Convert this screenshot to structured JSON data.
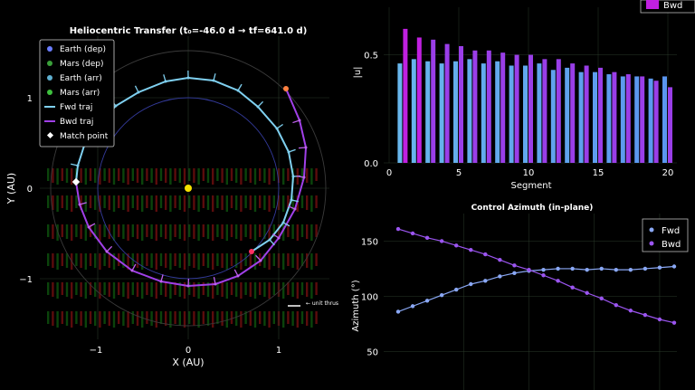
{
  "colors": {
    "fwd": "#7fd0f0",
    "bwd": "#a040e8",
    "fwd_dots": "#8aa8f5",
    "bwd_dots": "#9b55f0",
    "earth": "#6a7dff",
    "mars": "#b03030",
    "grid": "#2a3a2a"
  },
  "chart_data": [
    {
      "type": "line",
      "title": "Heliocentric Transfer  (t₀=-46.0 d → tf=641.0 d)",
      "xlabel": "X  (AU)",
      "ylabel": "Y  (AU)",
      "xlim": [
        -1.55,
        1.55
      ],
      "ylim": [
        -1.55,
        1.55
      ],
      "x_ticks": [
        -1,
        0,
        1
      ],
      "y_ticks": [
        -1,
        0,
        1
      ],
      "legend": [
        {
          "label": "Earth (dep)",
          "marker": "dot",
          "color": "#6a7dff"
        },
        {
          "label": "Mars (dep)",
          "marker": "dot",
          "color": "#3aa03a"
        },
        {
          "label": "Earth (arr)",
          "marker": "dot",
          "color": "#5fb0d0"
        },
        {
          "label": "Mars (arr)",
          "marker": "dot",
          "color": "#3ec03e"
        },
        {
          "label": "Fwd traj",
          "marker": "line",
          "color": "#7fd0f0"
        },
        {
          "label": "Bwd traj",
          "marker": "line",
          "color": "#a040e8"
        },
        {
          "label": "Match point",
          "marker": "diamond",
          "color": "#ffffff"
        }
      ],
      "annotation": "← unit thrus",
      "earth_orbit_r": 1.0,
      "mars_orbit_r": 1.52,
      "sun": [
        0,
        0
      ],
      "fwd_traj": [
        [
          -1.24,
          0.07
        ],
        [
          -1.22,
          0.25
        ],
        [
          -1.15,
          0.47
        ],
        [
          -1.0,
          0.7
        ],
        [
          -0.8,
          0.91
        ],
        [
          -0.55,
          1.06
        ],
        [
          -0.25,
          1.18
        ],
        [
          0.0,
          1.22
        ],
        [
          0.28,
          1.19
        ],
        [
          0.55,
          1.08
        ],
        [
          0.77,
          0.9
        ],
        [
          0.98,
          0.66
        ],
        [
          1.11,
          0.4
        ],
        [
          1.16,
          0.13
        ],
        [
          1.14,
          -0.13
        ],
        [
          1.05,
          -0.38
        ],
        [
          0.9,
          -0.57
        ],
        [
          0.7,
          -0.7
        ]
      ],
      "bwd_traj": [
        [
          -1.24,
          0.07
        ],
        [
          -1.2,
          -0.18
        ],
        [
          -1.1,
          -0.43
        ],
        [
          -0.9,
          -0.7
        ],
        [
          -0.62,
          -0.91
        ],
        [
          -0.3,
          -1.03
        ],
        [
          0.0,
          -1.08
        ],
        [
          0.3,
          -1.06
        ],
        [
          0.55,
          -0.97
        ],
        [
          0.8,
          -0.8
        ],
        [
          1.0,
          -0.55
        ],
        [
          1.18,
          -0.23
        ],
        [
          1.28,
          0.12
        ],
        [
          1.3,
          0.45
        ],
        [
          1.23,
          0.75
        ],
        [
          1.08,
          1.1
        ]
      ],
      "match_point": [
        -1.24,
        0.07
      ]
    },
    {
      "type": "bar",
      "title": "",
      "xlabel": "Segment",
      "ylabel": "|u|",
      "xlim": [
        -0.5,
        21
      ],
      "ylim": [
        0,
        0.72
      ],
      "x_ticks": [
        0,
        5,
        10,
        15,
        20
      ],
      "y_ticks": [
        0.0,
        0.5
      ],
      "legend": [
        {
          "label": "Bwd",
          "color": "#c020e0"
        }
      ],
      "categories": [
        1,
        2,
        3,
        4,
        5,
        6,
        7,
        8,
        9,
        10,
        11,
        12,
        13,
        14,
        15,
        16,
        17,
        18,
        19,
        20
      ],
      "series": [
        {
          "name": "Fwd",
          "values": [
            0.46,
            0.48,
            0.47,
            0.46,
            0.47,
            0.48,
            0.46,
            0.47,
            0.45,
            0.45,
            0.46,
            0.43,
            0.44,
            0.42,
            0.42,
            0.41,
            0.4,
            0.4,
            0.39,
            0.4
          ]
        },
        {
          "name": "Bwd",
          "values": [
            0.62,
            0.58,
            0.57,
            0.55,
            0.54,
            0.52,
            0.52,
            0.51,
            0.5,
            0.5,
            0.48,
            0.48,
            0.46,
            0.45,
            0.44,
            0.42,
            0.41,
            0.4,
            0.38,
            0.35
          ]
        }
      ]
    },
    {
      "type": "line",
      "title": "Control Azimuth (in-plane)",
      "xlabel": "",
      "ylabel": "Azimuth (°)",
      "xlim": [
        0,
        20.5
      ],
      "ylim": [
        15,
        175
      ],
      "y_ticks": [
        50,
        100,
        150
      ],
      "legend": [
        {
          "label": "Fwd",
          "color": "#8aa8f5"
        },
        {
          "label": "Bwd",
          "color": "#9b55f0"
        }
      ],
      "series": [
        {
          "name": "Fwd",
          "x": [
            1,
            2,
            3,
            4,
            5,
            6,
            7,
            8,
            9,
            10,
            11,
            12,
            13,
            14,
            15,
            16,
            17,
            18,
            19,
            20
          ],
          "values": [
            86,
            91,
            96,
            101,
            106,
            111,
            114,
            118,
            121,
            123,
            124,
            125,
            125,
            124,
            125,
            124,
            124,
            125,
            126,
            127
          ]
        },
        {
          "name": "Bwd",
          "x": [
            1,
            2,
            3,
            4,
            5,
            6,
            7,
            8,
            9,
            10,
            11,
            12,
            13,
            14,
            15,
            16,
            17,
            18,
            19,
            20
          ],
          "values": [
            161,
            157,
            153,
            150,
            146,
            142,
            138,
            133,
            128,
            124,
            119,
            114,
            108,
            103,
            98,
            92,
            87,
            83,
            79,
            76
          ]
        }
      ]
    }
  ]
}
